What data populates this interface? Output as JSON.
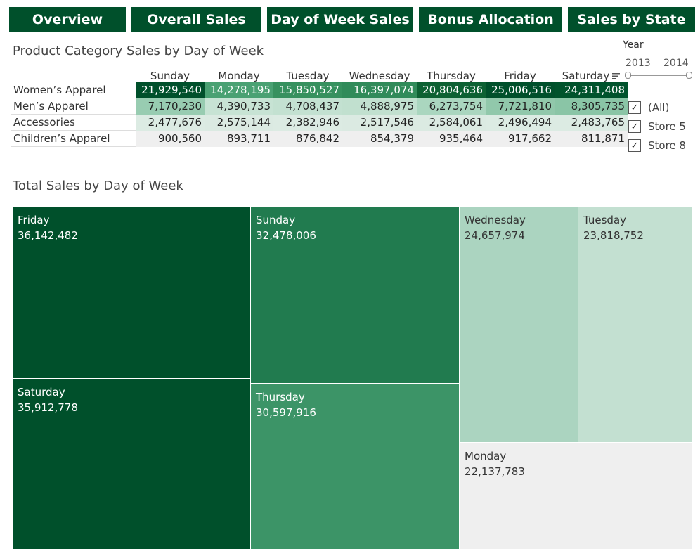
{
  "nav": {
    "buttons": [
      {
        "label": "Overview"
      },
      {
        "label": "Overall Sales"
      },
      {
        "label": "Day of Week Sales"
      },
      {
        "label": "Bonus Allocation"
      },
      {
        "label": "Sales by State"
      }
    ]
  },
  "table": {
    "title": "Product Category Sales by Day of Week",
    "columns": [
      "Sunday",
      "Monday",
      "Tuesday",
      "Wednesday",
      "Thursday",
      "Friday",
      "Saturday"
    ],
    "rows": [
      {
        "label": "Women’s Apparel",
        "values": [
          "21,929,540",
          "14,278,195",
          "15,850,527",
          "16,397,074",
          "20,804,636",
          "25,006,516",
          "24,311,408"
        ]
      },
      {
        "label": "Men’s Apparel",
        "values": [
          "7,170,230",
          "4,390,733",
          "4,708,437",
          "4,888,975",
          "6,273,754",
          "7,721,810",
          "8,305,735"
        ]
      },
      {
        "label": "Accessories",
        "values": [
          "2,477,676",
          "2,575,144",
          "2,382,946",
          "2,517,546",
          "2,584,061",
          "2,496,494",
          "2,483,765"
        ]
      },
      {
        "label": "Children’s Apparel",
        "values": [
          "900,560",
          "893,711",
          "876,842",
          "854,379",
          "935,464",
          "917,662",
          "811,871"
        ]
      }
    ]
  },
  "filters": {
    "year": {
      "label": "Year",
      "min": "2013",
      "max": "2014"
    },
    "stores": [
      {
        "label": "(All)",
        "checked": true
      },
      {
        "label": "Store 5",
        "checked": true
      },
      {
        "label": "Store 8",
        "checked": true
      }
    ]
  },
  "treemap": {
    "title": "Total Sales by Day of Week",
    "tiles": [
      {
        "day": "Friday",
        "value": "36,142,482"
      },
      {
        "day": "Saturday",
        "value": "35,912,778"
      },
      {
        "day": "Sunday",
        "value": "32,478,006"
      },
      {
        "day": "Thursday",
        "value": "30,597,916"
      },
      {
        "day": "Wednesday",
        "value": "24,657,974"
      },
      {
        "day": "Tuesday",
        "value": "23,818,752"
      },
      {
        "day": "Monday",
        "value": "22,137,783"
      }
    ]
  },
  "colors": {
    "nav": "#00502b",
    "tile_friday": "#00502b",
    "tile_saturday": "#00502b",
    "tile_sunday": "#217b4f",
    "tile_thursday": "#3c9467",
    "tile_wednesday": "#abd4c0",
    "tile_tuesday": "#c3e0d1",
    "tile_monday": "#efefef"
  }
}
